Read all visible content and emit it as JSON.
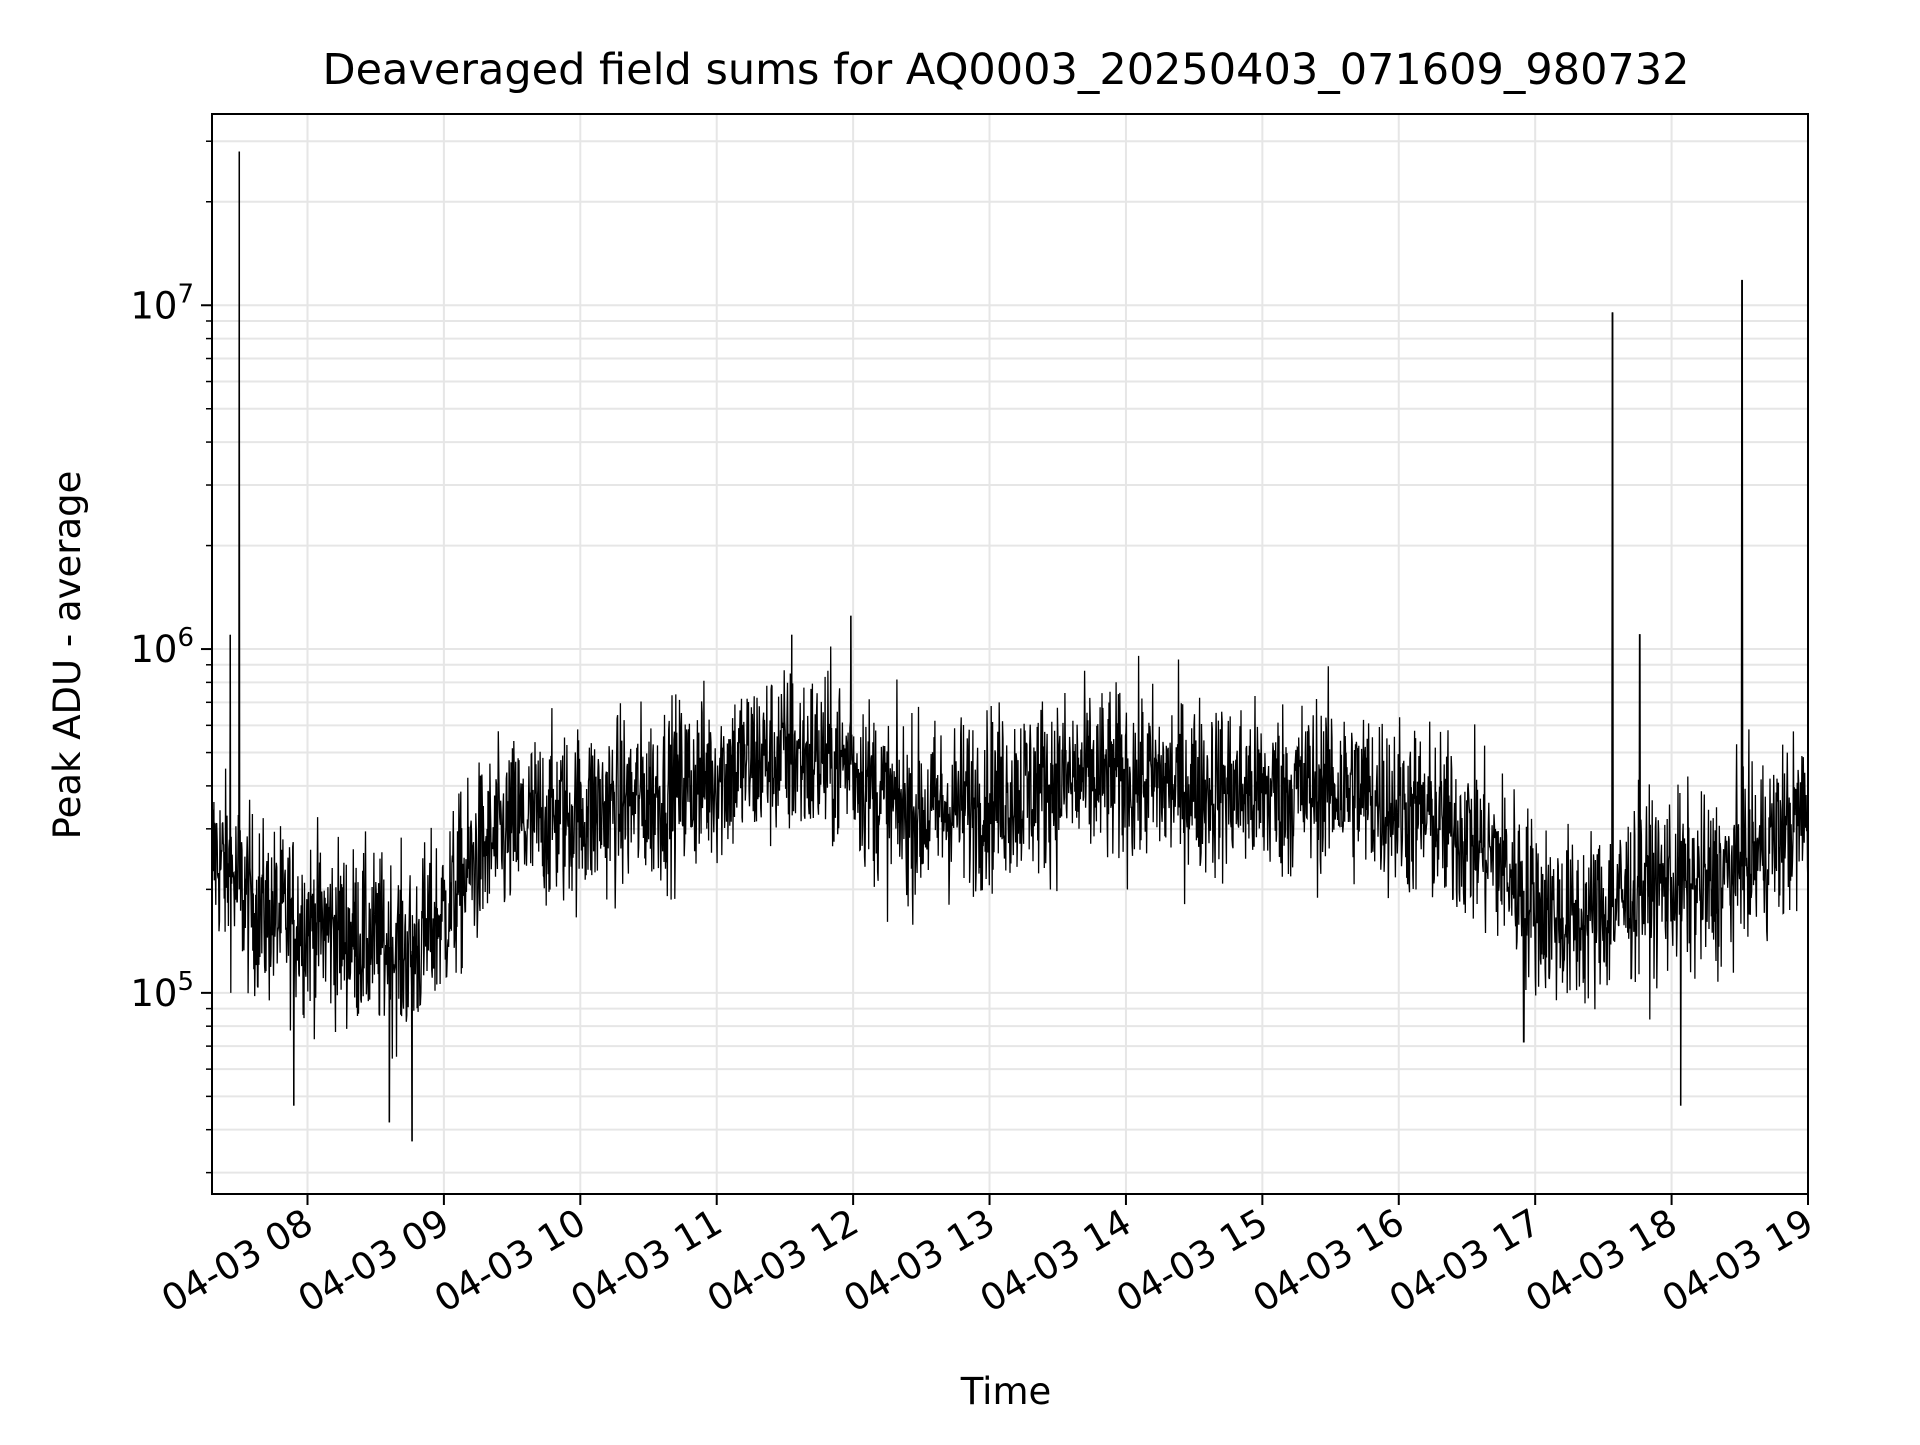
{
  "chart_data": {
    "type": "line",
    "title": "Deaveraged field sums for AQ0003_20250403_071609_980732",
    "xlabel": "Time",
    "ylabel": "Peak ADU - average",
    "y_scale": "log",
    "grid": true,
    "legend": "none",
    "xlim": [
      "04-03 07:18",
      "04-03 19:00"
    ],
    "ylim": [
      26000,
      36000000
    ],
    "x_ticks": [
      "04-03 08",
      "04-03 09",
      "04-03 10",
      "04-03 11",
      "04-03 12",
      "04-03 13",
      "04-03 14",
      "04-03 15",
      "04-03 16",
      "04-03 17",
      "04-03 18",
      "04-03 19"
    ],
    "y_ticks": [
      {
        "base": "10",
        "exp": "5",
        "value": 100000
      },
      {
        "base": "10",
        "exp": "6",
        "value": 1000000
      },
      {
        "base": "10",
        "exp": "7",
        "value": 10000000
      }
    ],
    "series": [
      {
        "color": "#000000",
        "x": [
          "04-03 07:20",
          "04-03 07:30",
          "04-03 07:40",
          "04-03 07:50",
          "04-03 08:00",
          "04-03 08:15",
          "04-03 08:30",
          "04-03 08:45",
          "04-03 09:00",
          "04-03 09:15",
          "04-03 09:30",
          "04-03 09:45",
          "04-03 10:00",
          "04-03 10:15",
          "04-03 10:30",
          "04-03 10:45",
          "04-03 11:00",
          "04-03 11:15",
          "04-03 11:30",
          "04-03 11:45",
          "04-03 12:00",
          "04-03 12:15",
          "04-03 12:30",
          "04-03 12:45",
          "04-03 13:00",
          "04-03 13:15",
          "04-03 13:30",
          "04-03 13:45",
          "04-03 14:00",
          "04-03 14:15",
          "04-03 14:30",
          "04-03 14:45",
          "04-03 15:00",
          "04-03 15:15",
          "04-03 15:30",
          "04-03 15:45",
          "04-03 16:00",
          "04-03 16:15",
          "04-03 16:30",
          "04-03 16:45",
          "04-03 17:00",
          "04-03 17:15",
          "04-03 17:30",
          "04-03 17:45",
          "04-03 18:00",
          "04-03 18:15",
          "04-03 18:30",
          "04-03 18:45",
          "04-03 19:00"
        ],
        "y": [
          250000,
          200000,
          170000,
          165000,
          160000,
          150000,
          140000,
          130000,
          170000,
          250000,
          300000,
          320000,
          330000,
          350000,
          370000,
          400000,
          430000,
          470000,
          490000,
          480000,
          460000,
          350000,
          330000,
          350000,
          370000,
          390000,
          410000,
          420000,
          420000,
          410000,
          400000,
          390000,
          380000,
          390000,
          400000,
          380000,
          350000,
          320000,
          290000,
          240000,
          180000,
          160000,
          170000,
          200000,
          210000,
          200000,
          230000,
          280000,
          330000
        ],
        "spikes": [
          {
            "x": "04-03 07:30",
            "y": 28000000
          },
          {
            "x": "04-03 17:34",
            "y": 9500000
          },
          {
            "x": "04-03 18:31",
            "y": 11800000
          },
          {
            "x": "04-03 11:59",
            "y": 1250000
          },
          {
            "x": "04-03 11:33",
            "y": 1100000
          },
          {
            "x": "04-03 07:26",
            "y": 1100000
          },
          {
            "x": "04-03 17:46",
            "y": 1100000
          },
          {
            "x": "04-03 08:46",
            "y": 37000
          },
          {
            "x": "04-03 08:36",
            "y": 42000
          },
          {
            "x": "04-03 07:54",
            "y": 47000
          },
          {
            "x": "04-03 18:04",
            "y": 47000
          },
          {
            "x": "04-03 16:55",
            "y": 72000
          }
        ]
      }
    ]
  }
}
